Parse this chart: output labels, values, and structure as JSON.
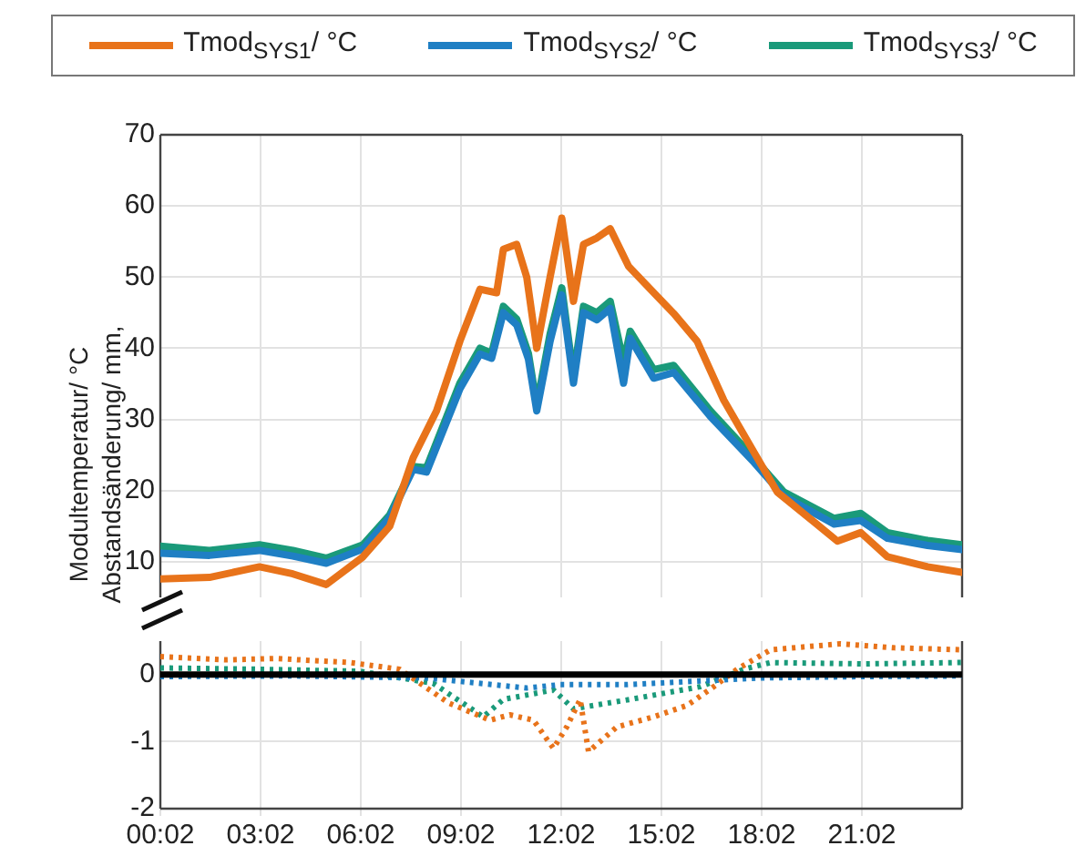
{
  "chart_data": [
    {
      "type": "line",
      "ylabel": "Modultemperatur/ °C",
      "legend": "top",
      "grid": true,
      "tick_labels": "y",
      "xlim": [
        0.033,
        24.033
      ],
      "xticks": [
        {
          "value": 0.033,
          "label": null
        },
        {
          "value": 3.033,
          "label": null
        },
        {
          "value": 6.033,
          "label": null
        },
        {
          "value": 9.033,
          "label": null
        },
        {
          "value": 12.033,
          "label": null
        },
        {
          "value": 15.033,
          "label": null
        },
        {
          "value": 18.033,
          "label": null
        },
        {
          "value": 21.033,
          "label": null
        }
      ],
      "ylim": [
        5,
        70
      ],
      "yticks": [
        10,
        20,
        30,
        40,
        50,
        60,
        70
      ],
      "series": [
        {
          "name": "Tmod$_{SYS1}$/ °C",
          "color": "#e8731a",
          "x": [
            0.033,
            1.5,
            3.0,
            4.0,
            5.0,
            6.1,
            6.9,
            7.6,
            8.3,
            9.0,
            9.6,
            10.1,
            10.3,
            10.7,
            11.0,
            11.3,
            11.7,
            12.05,
            12.4,
            12.7,
            13.1,
            13.5,
            13.8,
            14.05,
            14.7,
            15.4,
            16.1,
            16.9,
            17.8,
            18.5,
            19.6,
            20.3,
            21.0,
            21.8,
            23.0,
            24.03
          ],
          "values": [
            7.6,
            7.8,
            9.3,
            8.3,
            6.8,
            10.7,
            15,
            24.6,
            31.2,
            41,
            48.3,
            47.8,
            53.9,
            54.6,
            50,
            40,
            50,
            58.3,
            46.6,
            54.6,
            55.5,
            56.8,
            53.9,
            51.5,
            48.3,
            44.9,
            41,
            32.7,
            25.4,
            19.8,
            15.6,
            12.9,
            14.1,
            10.7,
            9.3,
            8.5
          ]
        },
        {
          "name": "Tmod$_{SYS2}$/ °C",
          "color": "#1f7fc4",
          "x": [
            0.033,
            1.5,
            3.0,
            4.0,
            5.0,
            6.1,
            6.9,
            7.6,
            8.0,
            9.0,
            9.6,
            9.95,
            10.3,
            10.7,
            11.05,
            11.3,
            11.7,
            12.05,
            12.4,
            12.7,
            13.1,
            13.5,
            13.9,
            14.1,
            14.8,
            15.4,
            16.5,
            17.8,
            18.7,
            20.2,
            21.0,
            21.8,
            23.0,
            24.03
          ],
          "values": [
            11.2,
            10.9,
            11.6,
            10.8,
            9.8,
            11.8,
            16.2,
            23,
            22.6,
            34.3,
            39.2,
            38.6,
            45,
            43.3,
            38.5,
            31.2,
            41,
            47.5,
            35.1,
            45,
            44,
            45.6,
            35.1,
            41.4,
            35.8,
            36.6,
            30.4,
            24,
            19.2,
            15.3,
            15.8,
            13.3,
            12.3,
            11.7
          ]
        },
        {
          "name": "Tmod$_{SYS3}$/ °C",
          "color": "#1a9a7a",
          "x": [
            0.033,
            1.5,
            3.0,
            4.0,
            5.0,
            6.1,
            6.9,
            7.6,
            8.0,
            9.0,
            9.6,
            9.95,
            10.3,
            10.7,
            11.05,
            11.3,
            11.7,
            12.05,
            12.4,
            12.7,
            13.1,
            13.5,
            13.9,
            14.1,
            14.8,
            15.4,
            16.5,
            17.8,
            18.7,
            20.2,
            21.0,
            21.8,
            23.0,
            24.03
          ],
          "values": [
            12.2,
            11.6,
            12.4,
            11.6,
            10.5,
            12.4,
            16.6,
            23.4,
            23.2,
            35.1,
            40,
            39.3,
            45.9,
            44.1,
            39.3,
            32,
            42,
            48.5,
            36,
            45.9,
            45,
            46.6,
            38,
            42.4,
            37,
            37.6,
            31.2,
            24.6,
            19.8,
            16.1,
            16.8,
            14.1,
            13,
            12.4
          ]
        }
      ]
    },
    {
      "type": "line",
      "ylabel": "Abstandsänderung/ mm,",
      "grid": true,
      "line_style": "dotted",
      "xlim": [
        0.033,
        24.033
      ],
      "xticks": [
        {
          "value": 0.033,
          "label": "00:02"
        },
        {
          "value": 3.033,
          "label": "03:02"
        },
        {
          "value": 6.033,
          "label": "06:02"
        },
        {
          "value": 9.033,
          "label": "09:02"
        },
        {
          "value": 12.033,
          "label": "12:02"
        },
        {
          "value": 15.033,
          "label": "15:02"
        },
        {
          "value": 18.033,
          "label": "18:02"
        },
        {
          "value": 21.033,
          "label": "21:02"
        }
      ],
      "ylim": [
        -2,
        0.5
      ],
      "yticks": [
        -2,
        -1,
        0
      ],
      "ref_lines": [
        {
          "axis": "y",
          "value": 0,
          "color": "#000000"
        }
      ],
      "series": [
        {
          "color": "#e8731a",
          "x": [
            0.033,
            2,
            3.5,
            5.7,
            7.2,
            8.65,
            9.9,
            10.5,
            11.2,
            11.8,
            12.2,
            12.6,
            12.85,
            13.7,
            14.8,
            15.8,
            16.6,
            17.3,
            18.3,
            20.4,
            22,
            24.03
          ],
          "values": [
            0.27,
            0.22,
            0.24,
            0.18,
            0.08,
            -0.42,
            -0.68,
            -0.6,
            -0.68,
            -1.1,
            -0.78,
            -0.37,
            -1.15,
            -0.78,
            -0.63,
            -0.46,
            -0.18,
            0.08,
            0.37,
            0.46,
            0.4,
            0.37
          ]
        },
        {
          "color": "#1f7fc4",
          "x": [
            0.033,
            4,
            8,
            10,
            11,
            12,
            14,
            16,
            18,
            21,
            24.03
          ],
          "values": [
            -0.03,
            -0.02,
            -0.05,
            -0.15,
            -0.2,
            -0.15,
            -0.15,
            -0.1,
            -0.05,
            -0.03,
            -0.02
          ]
        },
        {
          "color": "#1a9a7a",
          "x": [
            0.033,
            3,
            6,
            8.2,
            9.7,
            10.3,
            11.8,
            12.4,
            14.1,
            16.2,
            17.5,
            18.3,
            21,
            24.03
          ],
          "values": [
            0.1,
            0.08,
            0.05,
            -0.13,
            -0.63,
            -0.37,
            -0.23,
            -0.51,
            -0.37,
            -0.18,
            0.08,
            0.18,
            0.16,
            0.18
          ]
        }
      ]
    }
  ]
}
